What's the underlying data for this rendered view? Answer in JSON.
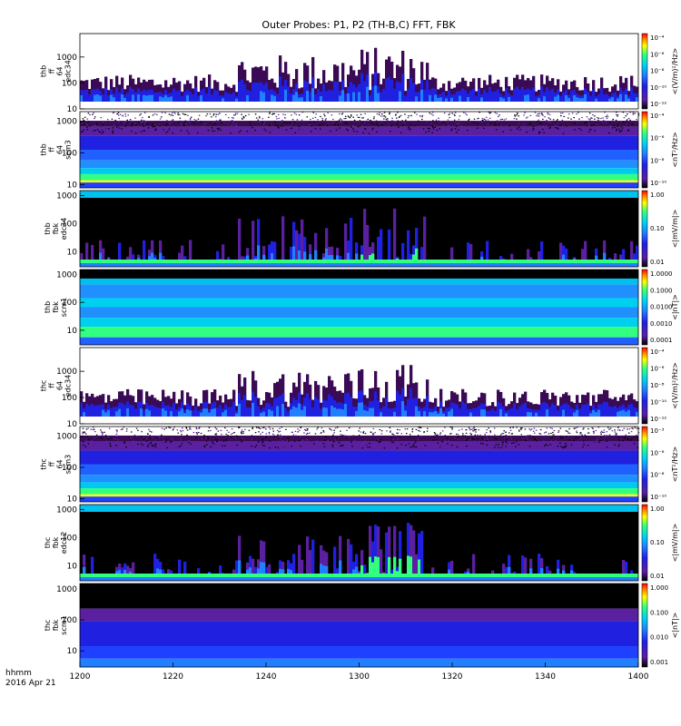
{
  "chart_data": {
    "type": "heatmap",
    "title": "Outer Probes: P1, P2 (TH-B,C) FFT, FBK",
    "x_axis": {
      "label_lines": [
        "hhmm",
        "2016 Apr 21"
      ],
      "ticks": [
        "1200",
        "1220",
        "1240",
        "1300",
        "1320",
        "1340",
        "1400"
      ],
      "range": [
        "12:00",
        "14:00"
      ]
    },
    "panels": [
      {
        "label": [
          "thb",
          "ff",
          "64",
          "edc34"
        ],
        "yticks": [
          "10",
          "100",
          "1000"
        ],
        "ylog": true,
        "yrange": [
          10,
          8000
        ],
        "cbar_ticks": [
          "10⁻⁴",
          "10⁻⁶",
          "10⁻⁸",
          "10⁻¹⁰",
          "10⁻¹²"
        ],
        "cbar_unit": "<(V/m)²/Hz>",
        "pattern": "sparse_bursts"
      },
      {
        "label": [
          "thb",
          "ff",
          "64",
          "scm3"
        ],
        "yticks": [
          "10",
          "100",
          "1000"
        ],
        "ylog": true,
        "yrange": [
          8,
          2000
        ],
        "cbar_ticks": [
          "10⁻⁴",
          "10⁻⁶",
          "10⁻⁸",
          "10⁻¹⁰"
        ],
        "cbar_unit": "<nT²/Hz>",
        "pattern": "banded_noise"
      },
      {
        "label": [
          "thb",
          "fbk",
          "edc34"
        ],
        "yticks": [
          "10",
          "100",
          "1000"
        ],
        "ylog": true,
        "yrange": [
          3,
          1500
        ],
        "cbar_ticks": [
          "1.00",
          "0.10",
          "0.01"
        ],
        "cbar_unit": "<|mV/m|>",
        "pattern": "fbk_dark"
      },
      {
        "label": [
          "thb",
          "fbk",
          "scm1"
        ],
        "yticks": [
          "10",
          "100",
          "1000"
        ],
        "ylog": true,
        "yrange": [
          3,
          1500
        ],
        "cbar_ticks": [
          "1.0000",
          "0.1000",
          "0.0100",
          "0.0010",
          "0.0001"
        ],
        "cbar_unit": "<|nT|>",
        "pattern": "fbk_bands"
      },
      {
        "label": [
          "thc",
          "ff",
          "64",
          "edc34"
        ],
        "yticks": [
          "10",
          "100",
          "1000"
        ],
        "ylog": true,
        "yrange": [
          10,
          8000
        ],
        "cbar_ticks": [
          "10⁻⁴",
          "10⁻⁶",
          "10⁻⁸",
          "10⁻¹⁰",
          "10⁻¹²"
        ],
        "cbar_unit": "<(V/m)²/Hz>",
        "pattern": "sparse_bursts"
      },
      {
        "label": [
          "thc",
          "ff",
          "64",
          "scm3"
        ],
        "yticks": [
          "10",
          "100",
          "1000"
        ],
        "ylog": true,
        "yrange": [
          8,
          2000
        ],
        "cbar_ticks": [
          "10⁻³",
          "10⁻⁶",
          "10⁻⁸",
          "10⁻¹⁰"
        ],
        "cbar_unit": "<nT²/Hz>",
        "pattern": "banded_noise"
      },
      {
        "label": [
          "thc",
          "fbk",
          "edc12"
        ],
        "yticks": [
          "10",
          "100",
          "1000"
        ],
        "ylog": true,
        "yrange": [
          3,
          1500
        ],
        "cbar_ticks": [
          "1.00",
          "0.10",
          "0.01"
        ],
        "cbar_unit": "<|mV/m|>",
        "pattern": "fbk_dark"
      },
      {
        "label": [
          "thc",
          "fbk",
          "scm1"
        ],
        "yticks": [
          "10",
          "100",
          "1000"
        ],
        "ylog": true,
        "yrange": [
          3,
          1500
        ],
        "cbar_ticks": [
          "1.000",
          "0.100",
          "0.010",
          "0.001"
        ],
        "cbar_unit": "<|nT|>",
        "pattern": "fbk_bands"
      }
    ],
    "colormap": [
      "#ffffff",
      "#000000",
      "#3a0a55",
      "#5a20a0",
      "#2020e0",
      "#2080ff",
      "#00d0f0",
      "#30ff80",
      "#ffff00",
      "#ff8000",
      "#ff0000"
    ]
  }
}
